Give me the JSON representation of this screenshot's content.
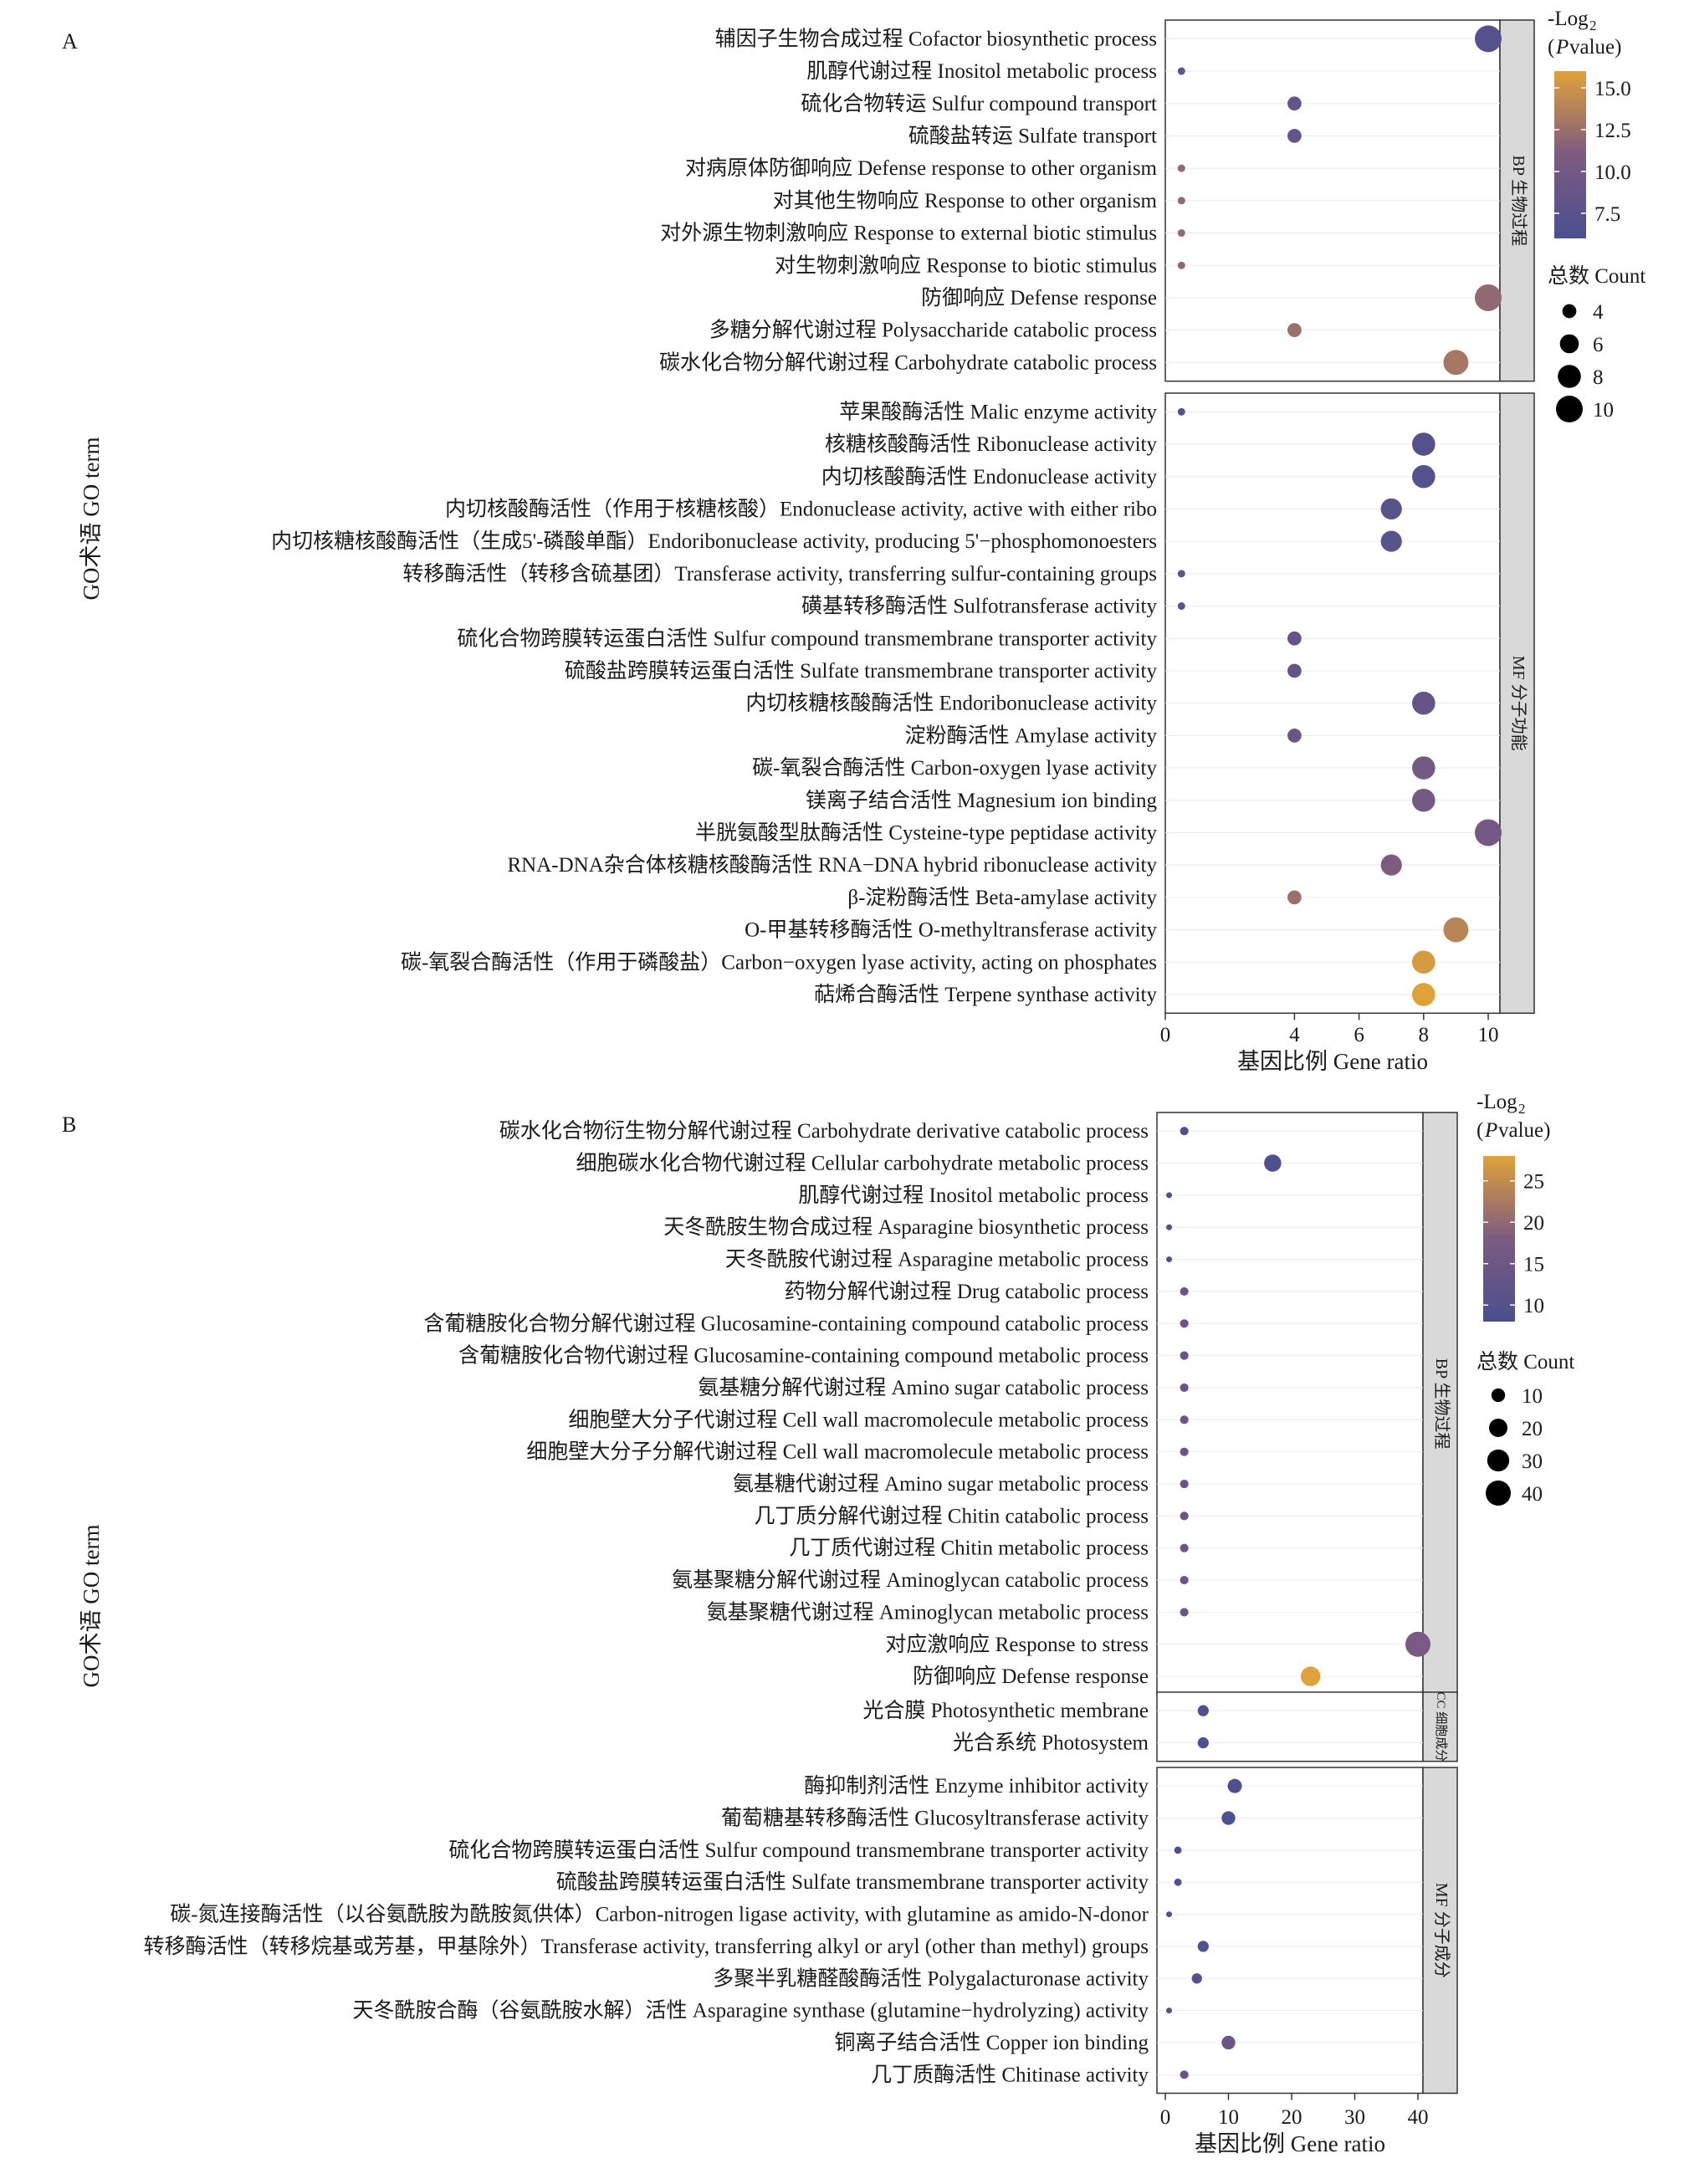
{
  "figure": {
    "y_axis_title": "GO术语 GO term",
    "x_axis_title": "基因比例 Gene ratio",
    "colour_legend_title": "-Log2 (P value)",
    "size_legend_title": "总数 Count",
    "colors": {
      "low": "#4a4f8f",
      "mid": "#7d5b80",
      "high": "#e0a13a",
      "strip_bg": "#d9d9d9",
      "grid": "#ebebeb"
    }
  },
  "chart_data": [
    {
      "panel": "A",
      "type": "scatter",
      "subtype": "dot plot (bubble)",
      "xlabel": "基因比例 Gene ratio",
      "ylabel": "GO术语 GO term",
      "xlim": [
        0,
        10.5
      ],
      "xticks": [
        0,
        4,
        6,
        8,
        10
      ],
      "colour_legend": {
        "title": "-Log2 (P value)",
        "ticks": [
          7.5,
          10.0,
          12.5,
          15.0
        ],
        "range": [
          6,
          16
        ]
      },
      "size_legend": {
        "title": "总数 Count",
        "ticks": [
          4,
          6,
          8,
          10
        ]
      },
      "facets": [
        {
          "strip": "BP 生物过程",
          "terms": [
            {
              "label": "辅因子生物合成过程 Cofactor biosynthetic process",
              "x": 10,
              "count": 10,
              "logp": 7
            },
            {
              "label": "肌醇代谢过程 Inositol metabolic process",
              "x": 0.5,
              "count": 2,
              "logp": 8
            },
            {
              "label": "硫化合物转运 Sulfur compound transport",
              "x": 4,
              "count": 4,
              "logp": 8.5
            },
            {
              "label": "硫酸盐转运 Sulfate transport",
              "x": 4,
              "count": 4,
              "logp": 8.5
            },
            {
              "label": "对病原体防御响应 Defense response to other organism",
              "x": 0.5,
              "count": 2,
              "logp": 12
            },
            {
              "label": "对其他生物响应 Response to other organism",
              "x": 0.5,
              "count": 2,
              "logp": 12
            },
            {
              "label": "对外源生物刺激响应 Response to external biotic stimulus",
              "x": 0.5,
              "count": 2,
              "logp": 12
            },
            {
              "label": "对生物刺激响应 Response to biotic stimulus",
              "x": 0.5,
              "count": 2,
              "logp": 12
            },
            {
              "label": "防御响应 Defense response",
              "x": 10,
              "count": 10,
              "logp": 12
            },
            {
              "label": "多糖分解代谢过程 Polysaccharide catabolic process",
              "x": 4,
              "count": 4,
              "logp": 12.5
            },
            {
              "label": "碳水化合物分解代谢过程 Carbohydrate catabolic process",
              "x": 9,
              "count": 9,
              "logp": 13
            }
          ]
        },
        {
          "strip": "MF 分子功能",
          "terms": [
            {
              "label": "苹果酸酶活性 Malic enzyme activity",
              "x": 0.5,
              "count": 2,
              "logp": 7
            },
            {
              "label": "核糖核酸酶活性 Ribonuclease activity",
              "x": 8,
              "count": 8,
              "logp": 7
            },
            {
              "label": "内切核酸酶活性 Endonuclease activity",
              "x": 8,
              "count": 8,
              "logp": 7
            },
            {
              "label": "内切核酸酶活性（作用于核糖核酸）Endonuclease activity, active with either ribo",
              "x": 7,
              "count": 7,
              "logp": 7.5
            },
            {
              "label": "内切核糖核酸酶活性（生成5'-磷酸单酯）Endoribonuclease activity, producing 5'−phosphomonoesters",
              "x": 7,
              "count": 7,
              "logp": 7.5
            },
            {
              "label": "转移酶活性（转移含硫基团）Transferase activity, transferring sulfur-containing groups",
              "x": 0.5,
              "count": 2,
              "logp": 8
            },
            {
              "label": "磺基转移酶活性 Sulfotransferase activity",
              "x": 0.5,
              "count": 2,
              "logp": 8
            },
            {
              "label": "硫化合物跨膜转运蛋白活性 Sulfur compound transmembrane transporter activity",
              "x": 4,
              "count": 4,
              "logp": 8.5
            },
            {
              "label": "硫酸盐跨膜转运蛋白活性 Sulfate transmembrane transporter activity",
              "x": 4,
              "count": 4,
              "logp": 8.5
            },
            {
              "label": "内切核糖核酸酶活性 Endoribonuclease activity",
              "x": 8,
              "count": 8,
              "logp": 8.5
            },
            {
              "label": "淀粉酶活性 Amylase activity",
              "x": 4,
              "count": 4,
              "logp": 9
            },
            {
              "label": "碳-氧裂合酶活性 Carbon-oxygen lyase activity",
              "x": 8,
              "count": 8,
              "logp": 10
            },
            {
              "label": "镁离子结合活性 Magnesium ion binding",
              "x": 8,
              "count": 8,
              "logp": 10
            },
            {
              "label": "半胱氨酸型肽酶活性 Cysteine-type peptidase activity",
              "x": 10,
              "count": 10,
              "logp": 10
            },
            {
              "label": "RNA-DNA杂合体核糖核酸酶活性 RNA−DNA hybrid ribonuclease activity",
              "x": 7,
              "count": 7,
              "logp": 11
            },
            {
              "label": "β-淀粉酶活性 Beta-amylase activity",
              "x": 4,
              "count": 4,
              "logp": 12.5
            },
            {
              "label": "O-甲基转移酶活性 O-methyltransferase activity",
              "x": 9,
              "count": 9,
              "logp": 14
            },
            {
              "label": "碳-氧裂合酶活性（作用于磷酸盐）Carbon−oxygen lyase activity, acting on phosphates",
              "x": 8,
              "count": 8,
              "logp": 15.5
            },
            {
              "label": "萜烯合酶活性 Terpene synthase activity",
              "x": 8,
              "count": 8,
              "logp": 16
            }
          ]
        }
      ]
    },
    {
      "panel": "B",
      "type": "scatter",
      "subtype": "dot plot (bubble)",
      "xlabel": "基因比例 Gene ratio",
      "ylabel": "GO术语 GO term",
      "xlim": [
        0,
        42
      ],
      "xticks": [
        0,
        10,
        20,
        30,
        40
      ],
      "colour_legend": {
        "title": "-Log2 (P value)",
        "ticks": [
          10,
          15,
          20,
          25
        ],
        "range": [
          8,
          28
        ]
      },
      "size_legend": {
        "title": "总数 Count",
        "ticks": [
          10,
          20,
          30,
          40
        ]
      },
      "facets": [
        {
          "strip": "BP 生物过程",
          "terms": [
            {
              "label": "碳水化合物衍生物分解代谢过程 Carbohydrate derivative catabolic process",
              "x": 3,
              "count": 3,
              "logp": 9
            },
            {
              "label": "细胞碳水化合物代谢过程 Cellular carbohydrate metabolic process",
              "x": 17,
              "count": 17,
              "logp": 9
            },
            {
              "label": "肌醇代谢过程 Inositol metabolic process",
              "x": 0.6,
              "count": 1,
              "logp": 9
            },
            {
              "label": "天冬酰胺生物合成过程 Asparagine biosynthetic process",
              "x": 0.6,
              "count": 1,
              "logp": 9
            },
            {
              "label": "天冬酰胺代谢过程 Asparagine metabolic process",
              "x": 0.6,
              "count": 1,
              "logp": 9
            },
            {
              "label": "药物分解代谢过程 Drug catabolic process",
              "x": 3,
              "count": 3,
              "logp": 14
            },
            {
              "label": "含葡糖胺化合物分解代谢过程 Glucosamine-containing compound catabolic process",
              "x": 3,
              "count": 3,
              "logp": 14
            },
            {
              "label": "含葡糖胺化合物代谢过程 Glucosamine-containing compound metabolic process",
              "x": 3,
              "count": 3,
              "logp": 14
            },
            {
              "label": "氨基糖分解代谢过程 Amino sugar catabolic process",
              "x": 3,
              "count": 3,
              "logp": 14
            },
            {
              "label": "细胞壁大分子代谢过程 Cell wall macromolecule metabolic process",
              "x": 3,
              "count": 3,
              "logp": 14
            },
            {
              "label": "细胞壁大分子分解代谢过程 Cell wall macromolecule metabolic process",
              "x": 3,
              "count": 3,
              "logp": 14
            },
            {
              "label": "氨基糖代谢过程 Amino sugar metabolic process",
              "x": 3,
              "count": 3,
              "logp": 14
            },
            {
              "label": "几丁质分解代谢过程 Chitin catabolic process",
              "x": 3,
              "count": 3,
              "logp": 14
            },
            {
              "label": "几丁质代谢过程 Chitin metabolic process",
              "x": 3,
              "count": 3,
              "logp": 14
            },
            {
              "label": "氨基聚糖分解代谢过程 Aminoglycan catabolic process",
              "x": 3,
              "count": 3,
              "logp": 14
            },
            {
              "label": "氨基聚糖代谢过程 Aminoglycan metabolic process",
              "x": 3,
              "count": 3,
              "logp": 14
            },
            {
              "label": "对应激响应 Response to stress",
              "x": 40,
              "count": 40,
              "logp": 17
            },
            {
              "label": "防御响应 Defense response",
              "x": 23,
              "count": 23,
              "logp": 28
            }
          ]
        },
        {
          "strip": "CC 细胞成分",
          "terms": [
            {
              "label": "光合膜 Photosynthetic membrane",
              "x": 6,
              "count": 6,
              "logp": 9
            },
            {
              "label": "光合系统 Photosystem",
              "x": 6,
              "count": 6,
              "logp": 9
            }
          ]
        },
        {
          "strip": "MF 分子成分",
          "terms": [
            {
              "label": "酶抑制剂活性 Enzyme inhibitor activity",
              "x": 11,
              "count": 11,
              "logp": 9
            },
            {
              "label": "葡萄糖基转移酶活性 Glucosyltransferase activity",
              "x": 10,
              "count": 10,
              "logp": 9
            },
            {
              "label": "硫化合物跨膜转运蛋白活性 Sulfur compound transmembrane transporter activity",
              "x": 2,
              "count": 2,
              "logp": 9
            },
            {
              "label": "硫酸盐跨膜转运蛋白活性 Sulfate transmembrane transporter activity",
              "x": 2,
              "count": 2,
              "logp": 9
            },
            {
              "label": "碳-氮连接酶活性（以谷氨酰胺为酰胺氮供体）Carbon-nitrogen ligase activity, with glutamine as amido-N-donor",
              "x": 0.6,
              "count": 1,
              "logp": 9
            },
            {
              "label": "转移酶活性（转移烷基或芳基，甲基除外）Transferase activity, transferring alkyl or aryl (other than methyl) groups",
              "x": 6,
              "count": 6,
              "logp": 9
            },
            {
              "label": "多聚半乳糖醛酸酶活性 Polygalacturonase activity",
              "x": 5,
              "count": 5,
              "logp": 10
            },
            {
              "label": "天冬酰胺合酶（谷氨酰胺水解）活性 Asparagine synthase (glutamine−hydrolyzing) activity",
              "x": 0.6,
              "count": 1,
              "logp": 10
            },
            {
              "label": "铜离子结合活性 Copper ion binding",
              "x": 10,
              "count": 10,
              "logp": 14
            },
            {
              "label": "几丁质酶活性 Chitinase activity",
              "x": 3,
              "count": 3,
              "logp": 14
            }
          ]
        }
      ]
    }
  ]
}
